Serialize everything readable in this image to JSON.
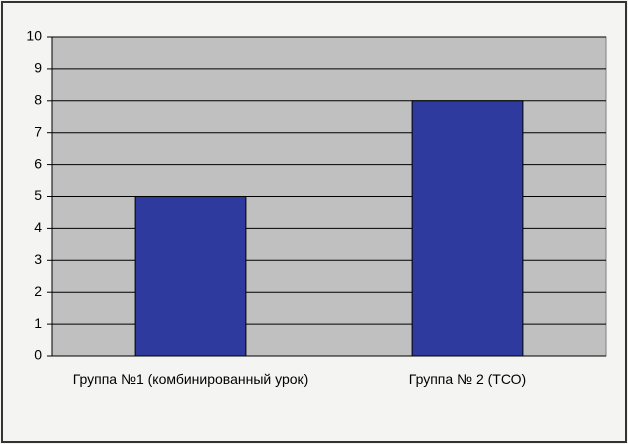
{
  "chart_data": {
    "type": "bar",
    "categories": [
      "Группа №1 (комбинированный урок)",
      "Группа № 2 (ТСО)"
    ],
    "values": [
      5,
      8
    ],
    "color": "#2e3a9e",
    "ylim": [
      0,
      10
    ],
    "yticks": [
      0,
      1,
      2,
      3,
      4,
      5,
      6,
      7,
      8,
      9,
      10
    ],
    "grid": true
  }
}
